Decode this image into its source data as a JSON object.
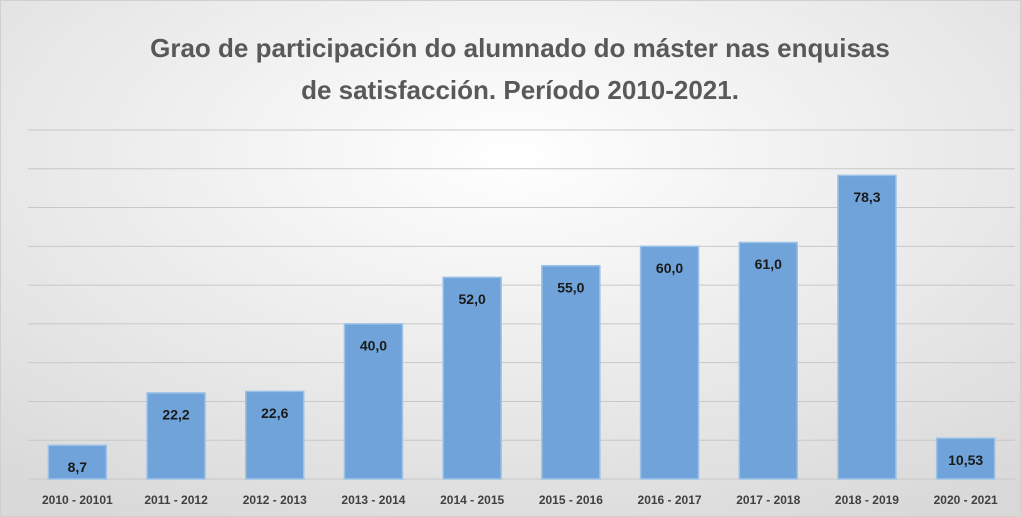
{
  "chart_data": {
    "type": "bar",
    "title": [
      "Grao de participación do alumnado do máster nas enquisas",
      "de satisfacción. Período 2010-2021."
    ],
    "categories": [
      "2010 - 20101",
      "2011 - 2012",
      "2012 - 2013",
      "2013 - 2014",
      "2014 - 2015",
      "2015 - 2016",
      "2016 - 2017",
      "2017 - 2018",
      "2018 - 2019",
      "2020 - 2021"
    ],
    "values": [
      8.7,
      22.2,
      22.6,
      40.0,
      52.0,
      55.0,
      60.0,
      61.0,
      78.3,
      10.53
    ],
    "value_labels": [
      "8,7",
      "22,2",
      "22,6",
      "40,0",
      "52,0",
      "55,0",
      "60,0",
      "61,0",
      "78,3",
      "10,53"
    ],
    "color": "#6fa3d9",
    "ylim": [
      0,
      90
    ],
    "yticks": [
      0,
      10,
      20,
      30,
      40,
      50,
      60,
      70,
      80,
      90
    ],
    "grid": true
  }
}
